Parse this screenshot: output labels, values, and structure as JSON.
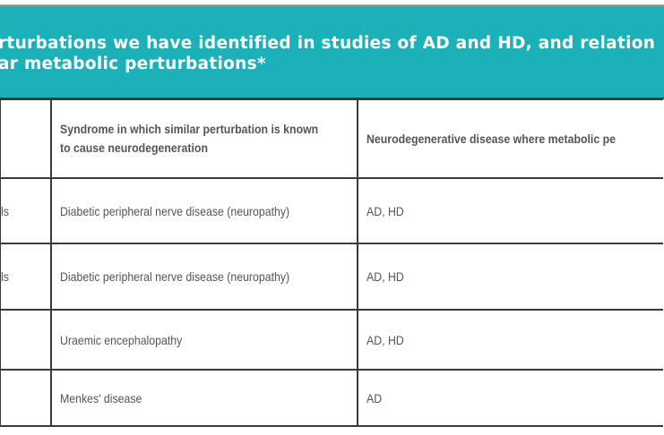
{
  "table": {
    "caption_lines": [
      "rturbations we have identified in studies of AD and HD, and relation",
      "ar metabolic perturbations*"
    ],
    "headers": [
      "",
      "Syndrome in which similar perturbation is known to cause neurodegeneration",
      "Neurodegenerative disease where metabolic pe"
    ],
    "header_col2_lines": [
      "Syndrome in which similar perturbation is known",
      "to cause neurodegeneration"
    ],
    "rows": [
      [
        "ls",
        "Diabetic peripheral nerve disease (neuropathy)",
        "AD, HD"
      ],
      [
        "ls",
        "Diabetic peripheral nerve disease (neuropathy)",
        "AD, HD"
      ],
      [
        "",
        "Uraemic encephalopathy",
        "AD, HD"
      ],
      [
        "",
        "Menkes' disease",
        "AD"
      ]
    ]
  },
  "colors": {
    "header_band": "#1cb1b9",
    "caption_text": "#ffffff",
    "body_text": "#555555",
    "border": "#3a3a3a"
  }
}
